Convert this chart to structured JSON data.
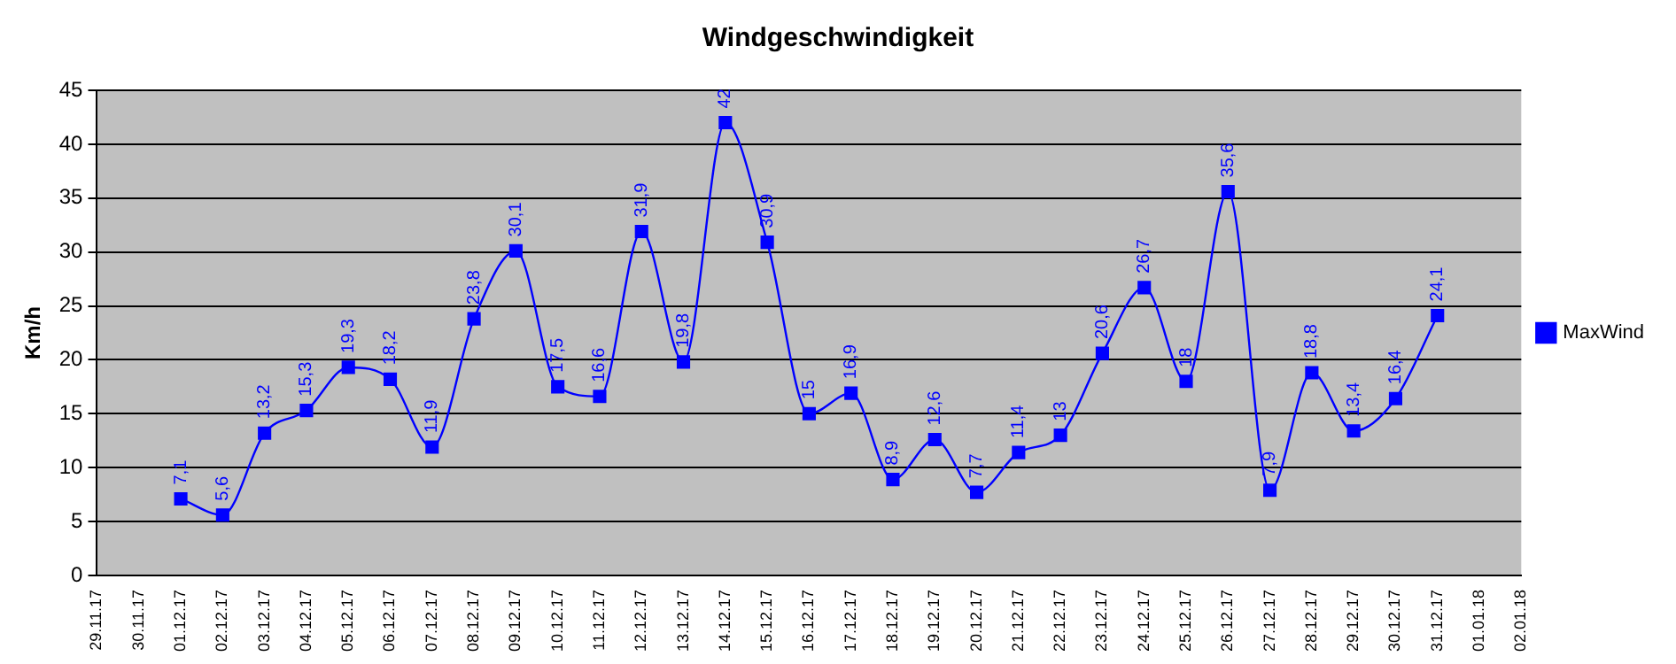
{
  "chart_data": {
    "type": "line",
    "title": "Windgeschwindigkeit",
    "ylabel": "Km/h",
    "categories": [
      "29.11.17",
      "30.11.17",
      "01.12.17",
      "02.12.17",
      "03.12.17",
      "04.12.17",
      "05.12.17",
      "06.12.17",
      "07.12.17",
      "08.12.17",
      "09.12.17",
      "10.12.17",
      "11.12.17",
      "12.12.17",
      "13.12.17",
      "14.12.17",
      "15.12.17",
      "16.12.17",
      "17.12.17",
      "18.12.17",
      "19.12.17",
      "20.12.17",
      "21.12.17",
      "22.12.17",
      "23.12.17",
      "24.12.17",
      "25.12.17",
      "26.12.17",
      "27.12.17",
      "28.12.17",
      "29.12.17",
      "30.12.17",
      "31.12.17",
      "01.01.18",
      "02.01.18"
    ],
    "series": [
      {
        "name": "MaxWind",
        "color": "#0000ff",
        "values": [
          null,
          null,
          7.1,
          5.6,
          13.2,
          15.3,
          19.3,
          18.2,
          11.9,
          23.8,
          30.1,
          17.5,
          16.6,
          31.9,
          19.8,
          42,
          30.9,
          15,
          16.9,
          8.9,
          12.6,
          7.7,
          11.4,
          13,
          20.6,
          26.7,
          18,
          35.6,
          7.9,
          18.8,
          13.4,
          16.4,
          24.1,
          null,
          null
        ],
        "value_labels": [
          null,
          null,
          "7,1",
          "5,6",
          "13,2",
          "15,3",
          "19,3",
          "18,2",
          "11,9",
          "23,8",
          "30,1",
          "17,5",
          "16,6",
          "31,9",
          "19,8",
          "42",
          "30,9",
          "15",
          "16,9",
          "8,9",
          "12,6",
          "7,7",
          "11,4",
          "13",
          "20,6",
          "26,7",
          "18",
          "35,6",
          "7,9",
          "18,8",
          "13,4",
          "16,4",
          "24,1",
          null,
          null
        ]
      }
    ],
    "ylim": [
      0,
      45
    ],
    "yticks": [
      0,
      5,
      10,
      15,
      20,
      25,
      30,
      35,
      40,
      45
    ],
    "grid": "y",
    "legend": "right",
    "marker": "square",
    "line_style": "solid"
  }
}
